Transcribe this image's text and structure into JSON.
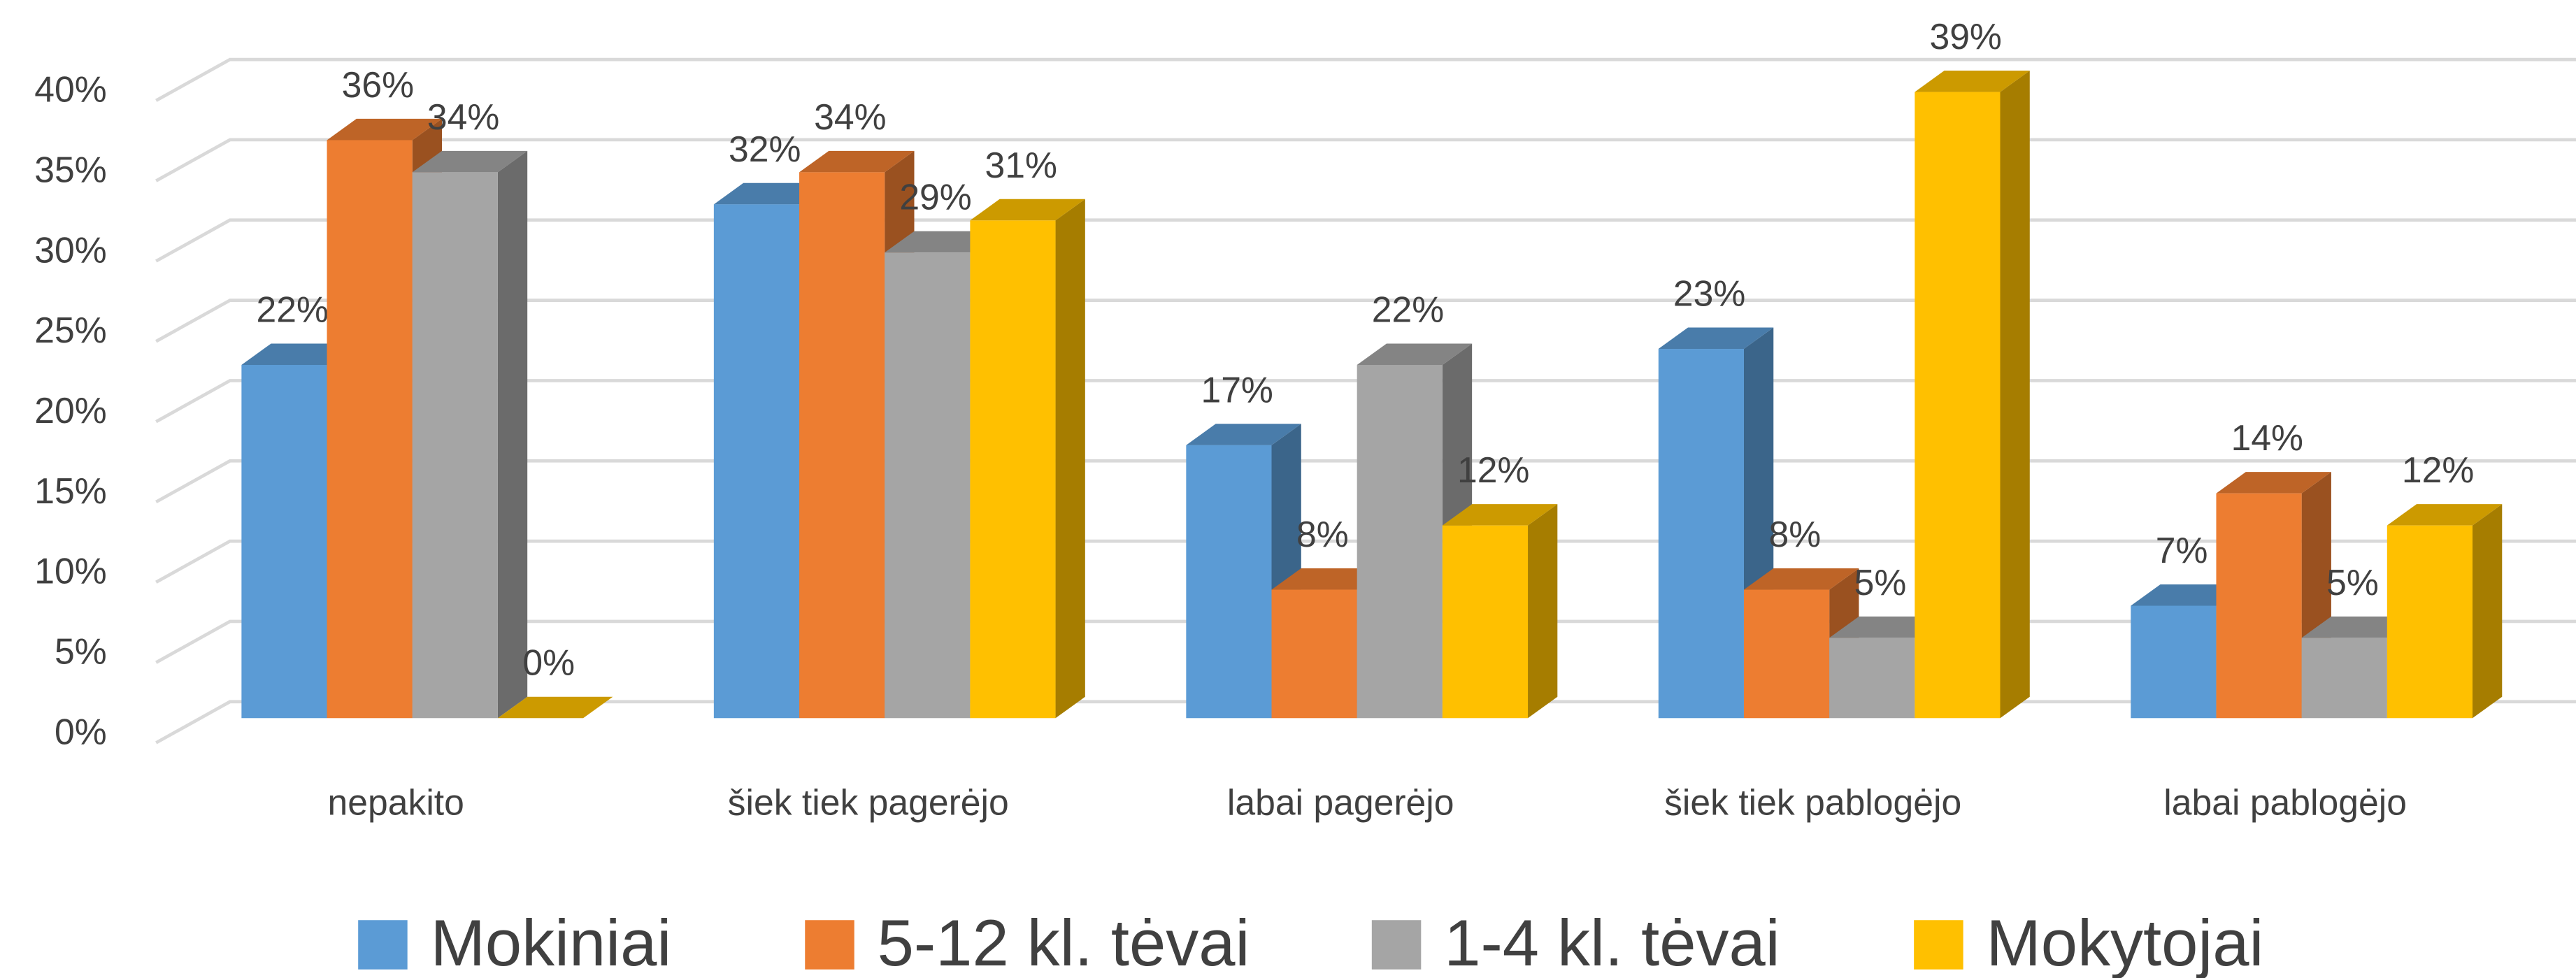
{
  "chart_data": {
    "type": "bar3d",
    "categories": [
      "nepakito",
      "šiek tiek pagerėjo",
      "labai pagerėjo",
      "šiek tiek pablogėjo",
      "labai pablogėjo"
    ],
    "series": [
      {
        "name": "Mokiniai",
        "color": "#5b9bd5",
        "values": [
          22,
          32,
          17,
          23,
          7
        ],
        "value_labels": [
          "22%",
          "32%",
          "17%",
          "23%",
          "7%"
        ]
      },
      {
        "name": "5-12 kl. tėvai",
        "color": "#ed7d31",
        "values": [
          36,
          34,
          8,
          8,
          14
        ],
        "value_labels": [
          "36%",
          "34%",
          "8%",
          "8%",
          "14%"
        ]
      },
      {
        "name": "1-4 kl. tėvai",
        "color": "#a5a5a5",
        "values": [
          34,
          29,
          22,
          5,
          5
        ],
        "value_labels": [
          "34%",
          "29%",
          "22%",
          "5%",
          "5%"
        ]
      },
      {
        "name": "Mokytojai",
        "color": "#ffc000",
        "values": [
          0,
          31,
          12,
          39,
          12
        ],
        "value_labels": [
          "0%",
          "31%",
          "12%",
          "39%",
          "12%"
        ]
      }
    ],
    "ylim": [
      0,
      40
    ],
    "yticks": [
      {
        "value": 0,
        "label": "0%"
      },
      {
        "value": 5,
        "label": "5%"
      },
      {
        "value": 10,
        "label": "10%"
      },
      {
        "value": 15,
        "label": "15%"
      },
      {
        "value": 20,
        "label": "20%"
      },
      {
        "value": 25,
        "label": "25%"
      },
      {
        "value": 30,
        "label": "30%"
      },
      {
        "value": 35,
        "label": "35%"
      },
      {
        "value": 40,
        "label": "40%"
      }
    ],
    "grid": true,
    "legend": "bottom"
  }
}
